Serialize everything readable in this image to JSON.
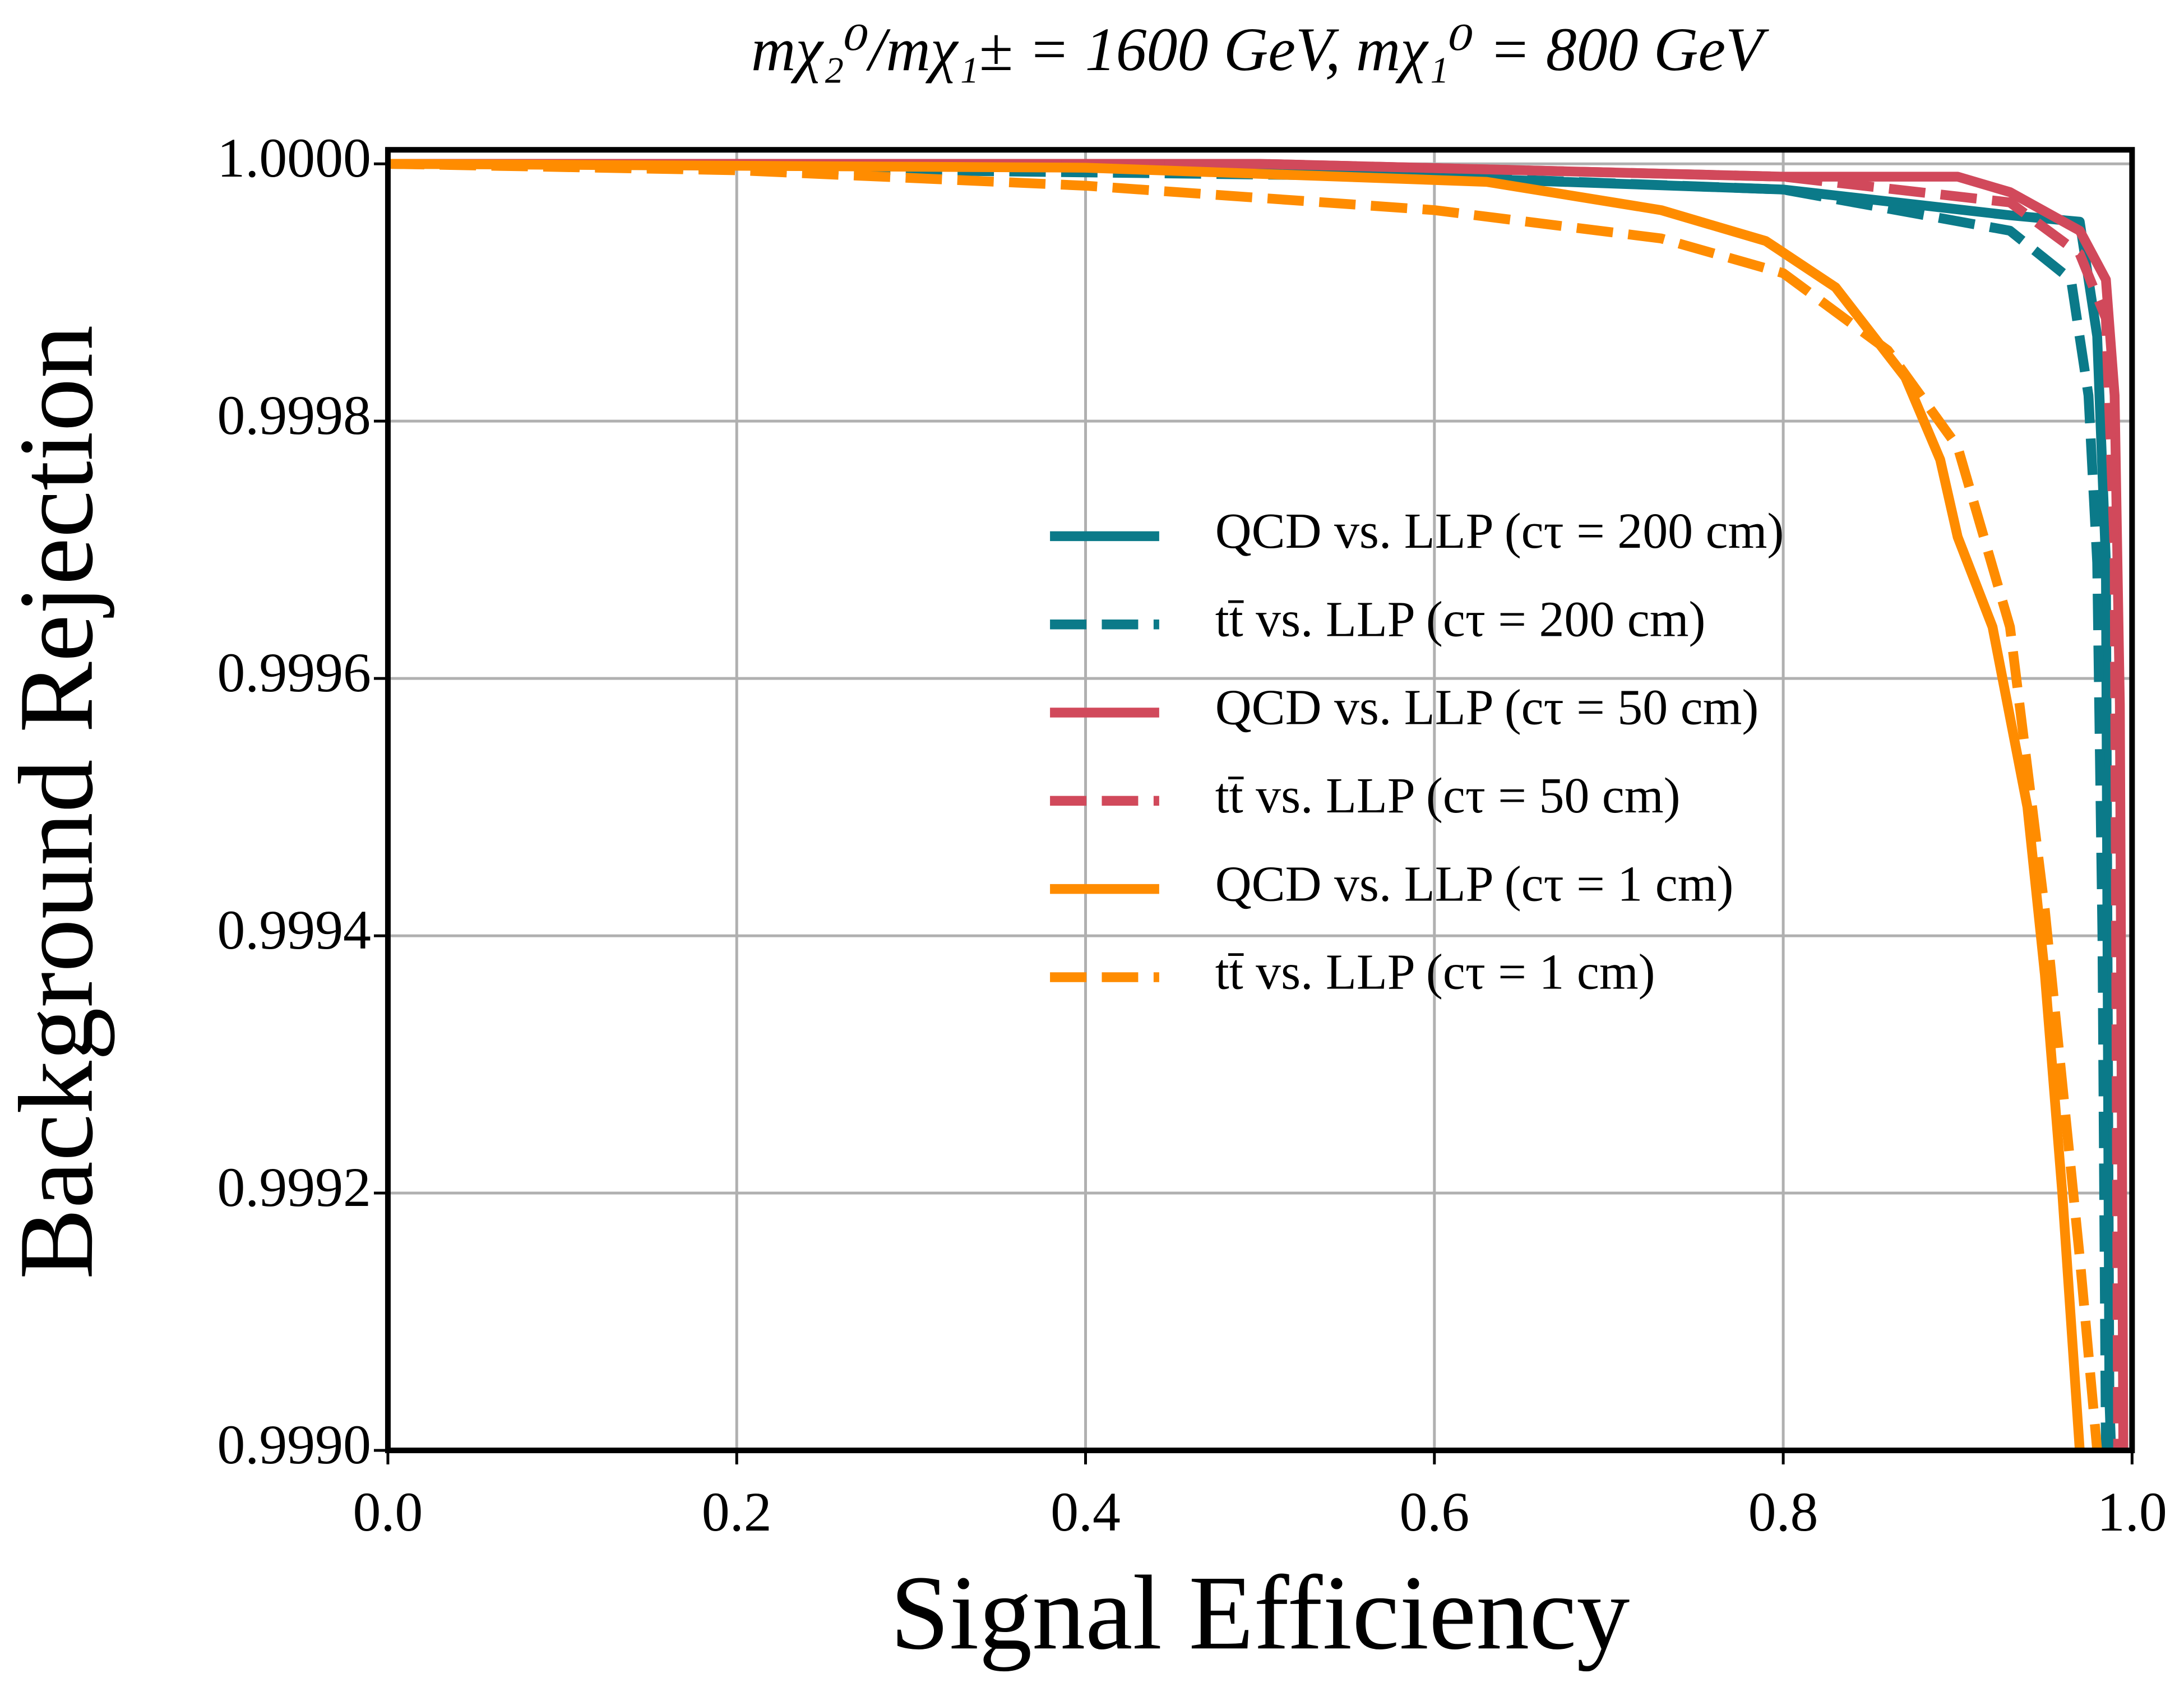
{
  "chart_data": {
    "type": "line",
    "title": "mχ₂⁰/mχ₁± = 1600 GeV, mχ₁⁰ = 800 GeV",
    "xlabel": "Signal Efficiency",
    "ylabel": "Background Rejection",
    "xlim": [
      0,
      1
    ],
    "ylim": [
      0.999,
      1.0000109
    ],
    "xticks": [
      {
        "value": 0,
        "label": "0.0"
      },
      {
        "value": 0.2,
        "label": "0.2"
      },
      {
        "value": 0.4,
        "label": "0.4"
      },
      {
        "value": 0.6,
        "label": "0.6"
      },
      {
        "value": 0.8,
        "label": "0.8"
      },
      {
        "value": 1,
        "label": "1.0"
      }
    ],
    "yticks": [
      {
        "value": 0.999,
        "label": "0.9990"
      },
      {
        "value": 0.9992,
        "label": "0.9992"
      },
      {
        "value": 0.9994,
        "label": "0.9994"
      },
      {
        "value": 0.9996,
        "label": "0.9996"
      },
      {
        "value": 0.9998,
        "label": "0.9998"
      },
      {
        "value": 1,
        "label": "1.0000"
      }
    ],
    "grid": true,
    "legend": "center right",
    "series": [
      {
        "name": "QCD vs. LLP (cτ = 200 cm)",
        "color": "#0b7a89",
        "dashed": false,
        "x": [
          0,
          0.4,
          0.8,
          0.93,
          0.97,
          0.98,
          0.985,
          0.987,
          0.988
        ],
        "values": [
          1,
          0.999999,
          0.99998,
          0.99996,
          0.999955,
          0.999866,
          0.99969,
          0.99904,
          0.999
        ]
      },
      {
        "name": "tt̄ vs. LLP (cτ = 200 cm)",
        "color": "#0b7a89",
        "dashed": true,
        "x": [
          0,
          0.6,
          0.8,
          0.93,
          0.965,
          0.975,
          0.98,
          0.983,
          0.985
        ],
        "values": [
          1,
          0.99999,
          0.99998,
          0.999948,
          0.99991,
          0.99982,
          0.99969,
          0.9994,
          0.999
        ]
      },
      {
        "name": "QCD vs. LLP (cτ = 50 cm)",
        "color": "#d1495b",
        "dashed": false,
        "x": [
          0,
          0.5,
          0.8,
          0.9,
          0.93,
          0.97,
          0.985,
          0.99,
          0.993,
          0.995
        ],
        "values": [
          1,
          1,
          0.99999,
          0.99999,
          0.999978,
          0.999948,
          0.99991,
          0.99982,
          0.99958,
          0.999
        ]
      },
      {
        "name": "tt̄ vs. LLP (cτ = 50 cm)",
        "color": "#d1495b",
        "dashed": true,
        "x": [
          0,
          0.5,
          0.8,
          0.93,
          0.97,
          0.985,
          0.99,
          0.992
        ],
        "values": [
          1,
          1,
          0.99999,
          0.99997,
          0.99993,
          0.99988,
          0.9997,
          0.999
        ]
      },
      {
        "name": "QCD vs. LLP (cτ = 1 cm)",
        "color": "#ff8c00",
        "dashed": false,
        "x": [
          0,
          0.4,
          0.63,
          0.73,
          0.79,
          0.83,
          0.87,
          0.89,
          0.9,
          0.92,
          0.94,
          0.95,
          0.96,
          0.97
        ],
        "values": [
          1,
          0.999997,
          0.999986,
          0.999964,
          0.99994,
          0.999904,
          0.999834,
          0.99977,
          0.99971,
          0.99964,
          0.9995,
          0.99937,
          0.9992,
          0.999
        ]
      },
      {
        "name": "tt̄ vs. LLP (cτ = 1 cm)",
        "color": "#ff8c00",
        "dashed": true,
        "x": [
          0,
          0.2,
          0.4,
          0.6,
          0.73,
          0.8,
          0.86,
          0.9,
          0.93,
          0.95,
          0.97,
          0.98
        ],
        "values": [
          1,
          0.999995,
          0.999983,
          0.999964,
          0.999942,
          0.999915,
          0.999855,
          0.99978,
          0.99964,
          0.99942,
          0.99915,
          0.999
        ]
      }
    ]
  }
}
